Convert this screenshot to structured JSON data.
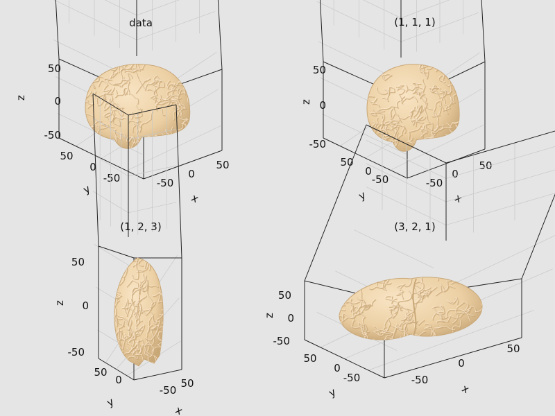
{
  "chart_data": [
    {
      "type": "surface3d",
      "title": "data",
      "xlabel": "x",
      "ylabel": "y",
      "zlabel": "z",
      "x_ticks": [
        "-50",
        "0",
        "50"
      ],
      "y_ticks": [
        "-50",
        "0",
        "50"
      ],
      "z_ticks": [
        "-50",
        "0",
        "50"
      ],
      "aspect_ratio": "data",
      "surface_color": "#f0d4a8"
    },
    {
      "type": "surface3d",
      "title": "(1, 1, 1)",
      "xlabel": "x",
      "ylabel": "y",
      "zlabel": "z",
      "x_ticks": [
        "-50",
        "0",
        "50"
      ],
      "y_ticks": [
        "-50",
        "0",
        "50"
      ],
      "z_ticks": [
        "-50",
        "0",
        "50"
      ],
      "aspect_ratio": [
        1,
        1,
        1
      ],
      "surface_color": "#f0d4a8"
    },
    {
      "type": "surface3d",
      "title": "(1, 2, 3)",
      "xlabel": "x",
      "ylabel": "y",
      "zlabel": "z",
      "x_ticks": [
        "-50",
        "50"
      ],
      "y_ticks": [
        "0",
        "50"
      ],
      "z_ticks": [
        "-50",
        "0",
        "50"
      ],
      "aspect_ratio": [
        1,
        2,
        3
      ],
      "surface_color": "#f0d4a8"
    },
    {
      "type": "surface3d",
      "title": "(3, 2, 1)",
      "xlabel": "x",
      "ylabel": "y",
      "zlabel": "z",
      "x_ticks": [
        "-50",
        "0",
        "50"
      ],
      "y_ticks": [
        "-50",
        "0",
        "50"
      ],
      "z_ticks": [
        "-50",
        "0",
        "50"
      ],
      "aspect_ratio": [
        3,
        2,
        1
      ],
      "surface_color": "#f0d4a8"
    }
  ],
  "colors": {
    "background": "#e5e5e5",
    "surface": "#f0d4a8",
    "surface_shadow": "#c9a878",
    "gyri_highlight": "#fbe9cf",
    "axis": "#222222",
    "grid": "#c8c8c8"
  }
}
